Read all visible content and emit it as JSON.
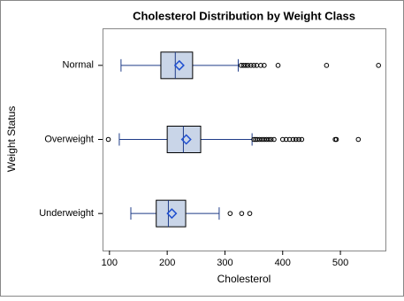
{
  "chart_data": {
    "type": "box",
    "orientation": "horizontal",
    "title": "Cholesterol Distribution by Weight Class",
    "x_label": "Cholesterol",
    "y_label": "Weight Status",
    "categories": [
      "Normal",
      "Overweight",
      "Underweight"
    ],
    "box_color": "#c9d5e8",
    "whisker_color": "#1f3c88",
    "mean_color": "#1f4fd0",
    "boxes": [
      {
        "min": 120,
        "q1": 189,
        "median": 214,
        "q3": 244,
        "max": 323,
        "mean": 221,
        "outliers": [
          328,
          332,
          336,
          340,
          345,
          350,
          355,
          362,
          368,
          392,
          476,
          566
        ]
      },
      {
        "min": 117,
        "q1": 200,
        "median": 228,
        "q3": 258,
        "max": 347,
        "mean": 233,
        "outliers": [
          98,
          350,
          353,
          356,
          360,
          364,
          368,
          372,
          376,
          380,
          385,
          400,
          406,
          412,
          418,
          423,
          428,
          433,
          491,
          493,
          531
        ]
      },
      {
        "min": 137,
        "q1": 181,
        "median": 202,
        "q3": 232,
        "max": 290,
        "mean": 208,
        "outliers": [
          309,
          329,
          343
        ]
      }
    ],
    "xlim": [
      88,
      578
    ],
    "xticks": [
      100,
      200,
      300,
      400,
      500
    ]
  }
}
